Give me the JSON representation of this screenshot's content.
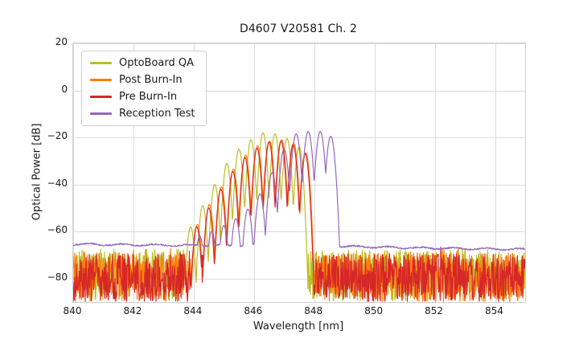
{
  "chart_data": {
    "type": "line",
    "title": "D4607 V20581 Ch. 2",
    "xlabel": "Wavelength [nm]",
    "ylabel": "Optical Power [dB]",
    "xlim": [
      840,
      855
    ],
    "ylim": [
      -90,
      20
    ],
    "x_ticks": [
      840,
      842,
      844,
      846,
      848,
      850,
      852,
      854
    ],
    "y_ticks": [
      20,
      0,
      -20,
      -40,
      -60,
      -80
    ],
    "grid": true,
    "grid_color": "#dcdcdc",
    "legend_position": "upper left",
    "description": "Optical spectra of laser channel at four QA stages; multimode peaks near 846-848 nm over a measurement noise floor",
    "series": [
      {
        "name": "OptoBoard QA",
        "color": "#bcbd22",
        "seed": 11,
        "mode_spacing_nm": 0.4,
        "mode_dip_db": 28,
        "noise": {
          "top_db": -67.5,
          "depth_db": 22,
          "spike_prob": 0.02,
          "spike_db": 5
        },
        "modes": [
          [
            843.9,
            -58
          ],
          [
            844.3,
            -49
          ],
          [
            844.7,
            -40
          ],
          [
            845.1,
            -31
          ],
          [
            845.5,
            -25
          ],
          [
            845.9,
            -21
          ],
          [
            846.3,
            -18
          ],
          [
            846.7,
            -18.5
          ],
          [
            847.1,
            -20.5
          ],
          [
            847.5,
            -24
          ]
        ]
      },
      {
        "name": "Post Burn-In",
        "color": "#ff7f0e",
        "seed": 23,
        "mode_spacing_nm": 0.4,
        "mode_dip_db": 28,
        "noise": {
          "top_db": -69,
          "depth_db": 21,
          "spike_prob": 0.02,
          "spike_db": 5
        },
        "modes": [
          [
            844.12,
            -57
          ],
          [
            844.52,
            -48.5
          ],
          [
            844.92,
            -41
          ],
          [
            845.32,
            -33.5
          ],
          [
            845.72,
            -27.5
          ],
          [
            846.12,
            -23.5
          ],
          [
            846.52,
            -21.5
          ],
          [
            846.92,
            -21
          ],
          [
            847.32,
            -22.5
          ],
          [
            847.72,
            -26.5
          ]
        ]
      },
      {
        "name": "Pre Burn-In",
        "color": "#d62728",
        "seed": 37,
        "mode_spacing_nm": 0.4,
        "mode_dip_db": 28,
        "noise": {
          "top_db": -69.5,
          "depth_db": 20.5,
          "spike_prob": 0.02,
          "spike_db": 6
        },
        "modes": [
          [
            844.1,
            -58
          ],
          [
            844.5,
            -50
          ],
          [
            844.9,
            -42
          ],
          [
            845.3,
            -34.5
          ],
          [
            845.7,
            -28.5
          ],
          [
            846.1,
            -24.5
          ],
          [
            846.5,
            -22
          ],
          [
            846.9,
            -21.5
          ],
          [
            847.3,
            -23
          ],
          [
            847.7,
            -27
          ]
        ]
      },
      {
        "name": "Reception Test",
        "color": "#9467bd",
        "seed": 51,
        "mode_spacing_nm": 0.4,
        "mode_dip_db": 22,
        "floor": {
          "points": [
            [
              840,
              -65.4
            ],
            [
              842,
              -65.7
            ],
            [
              844,
              -65.9
            ],
            [
              846,
              -66.0
            ],
            [
              848.8,
              -66.3
            ],
            [
              851,
              -66.9
            ],
            [
              853,
              -67.3
            ],
            [
              855,
              -67.6
            ]
          ],
          "ripple_db": 0.35,
          "ripple_period_nm": 1.1,
          "jitter_db": 0.3
        },
        "modes": [
          [
            844.2,
            -62
          ],
          [
            844.6,
            -60
          ],
          [
            845.0,
            -57.5
          ],
          [
            845.4,
            -54.5
          ],
          [
            845.8,
            -50.5
          ],
          [
            846.2,
            -44
          ],
          [
            846.6,
            -35
          ],
          [
            847.0,
            -25
          ],
          [
            847.4,
            -18.5
          ],
          [
            847.8,
            -17.5
          ],
          [
            848.2,
            -17.5
          ],
          [
            848.55,
            -19.5
          ]
        ]
      }
    ]
  }
}
